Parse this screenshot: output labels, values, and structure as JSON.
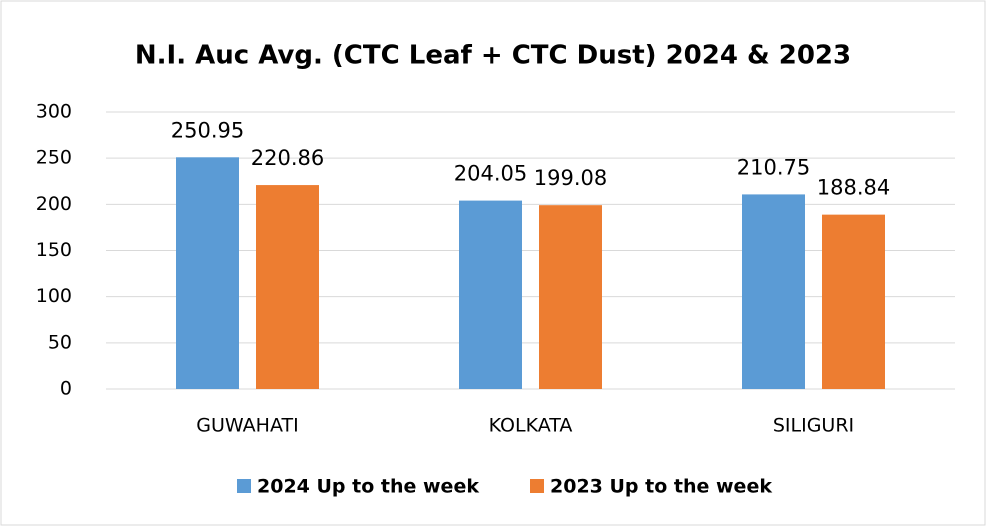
{
  "chart_data": {
    "type": "bar",
    "title": "N.I. Auc Avg. (CTC Leaf + CTC Dust) 2024 & 2023",
    "categories": [
      "GUWAHATI",
      "KOLKATA",
      "SILIGURI"
    ],
    "series": [
      {
        "name": "2024 Up to the week",
        "color": "#5b9bd5",
        "values": [
          250.95,
          204.05,
          210.75
        ]
      },
      {
        "name": "2023 Up to the week",
        "color": "#ed7d31",
        "values": [
          220.86,
          199.08,
          188.84
        ]
      }
    ],
    "ylim": [
      0,
      300
    ],
    "yticks": [
      0,
      50,
      100,
      150,
      200,
      250,
      300
    ],
    "grid": true,
    "legend": "bottom"
  }
}
